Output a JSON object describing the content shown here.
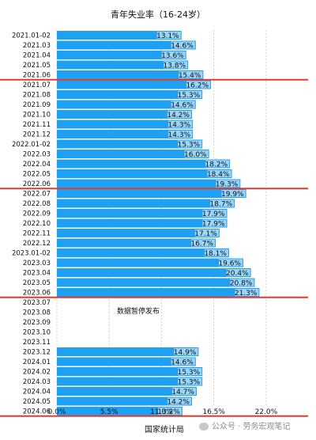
{
  "chart_data": {
    "type": "bar",
    "orientation": "horizontal",
    "title": "青年失业率（16-24岁）",
    "xlabel": "国家统计局",
    "ylabel": "",
    "xlim": [
      0,
      27.5
    ],
    "xticks": [
      "0.0%",
      "5.5%",
      "11.0%",
      "16.5%",
      "22.0%"
    ],
    "bar_color": "#1ea1f2",
    "divider_color": "#e23a2e",
    "grid": "vertical dashed",
    "gap_annotation": "数据暂停发布",
    "categories": [
      "2021.01-02",
      "2021.03",
      "2021.04",
      "2021.05",
      "2021.06",
      "2021.07",
      "2021.08",
      "2021.09",
      "2021.10",
      "2021.11",
      "2021.12",
      "2022.01-02",
      "2022.03",
      "2022.04",
      "2022.05",
      "2022.06",
      "2022.07",
      "2022.08",
      "2022.09",
      "2022.10",
      "2022.11",
      "2022.12",
      "2023.01-02",
      "2023.03",
      "2023.04",
      "2023.05",
      "2023.06",
      "2023.07",
      "2023.08",
      "2023.09",
      "2023.10",
      "2023.11",
      "2023.12",
      "2024.01",
      "2024.02",
      "2024.03",
      "2024.04",
      "2024.05",
      "2024.06"
    ],
    "values": [
      13.1,
      14.6,
      13.6,
      13.8,
      15.4,
      16.2,
      15.3,
      14.6,
      14.2,
      14.3,
      14.3,
      15.3,
      16.0,
      18.2,
      18.4,
      19.3,
      19.9,
      18.7,
      17.9,
      17.9,
      17.1,
      16.7,
      18.1,
      19.6,
      20.4,
      20.8,
      21.3,
      null,
      null,
      null,
      null,
      null,
      14.9,
      14.6,
      15.3,
      15.3,
      14.7,
      14.2,
      13.2
    ],
    "value_labels": [
      "13.1%",
      "14.6%",
      "13.6%",
      "13.8%",
      "15.4%",
      "16.2%",
      "15.3%",
      "14.6%",
      "14.2%",
      "14.3%",
      "14.3%",
      "15.3%",
      "16.0%",
      "18.2%",
      "18.4%",
      "19.3%",
      "19.9%",
      "18.7%",
      "17.9%",
      "17.9%",
      "17.1%",
      "16.7%",
      "18.1%",
      "19.6%",
      "20.4%",
      "20.8%",
      "21.3%",
      "",
      "",
      "",
      "",
      "",
      "14.9%",
      "14.6%",
      "15.3%",
      "15.3%",
      "14.7%",
      "14.2%",
      "13.2%"
    ],
    "dividers_after": [
      "2021.06",
      "2022.06",
      "2023.06",
      "2024.06"
    ]
  },
  "watermark": "公众号 · 劳务宏观笔记",
  "watermark_icon": "wechat-icon"
}
